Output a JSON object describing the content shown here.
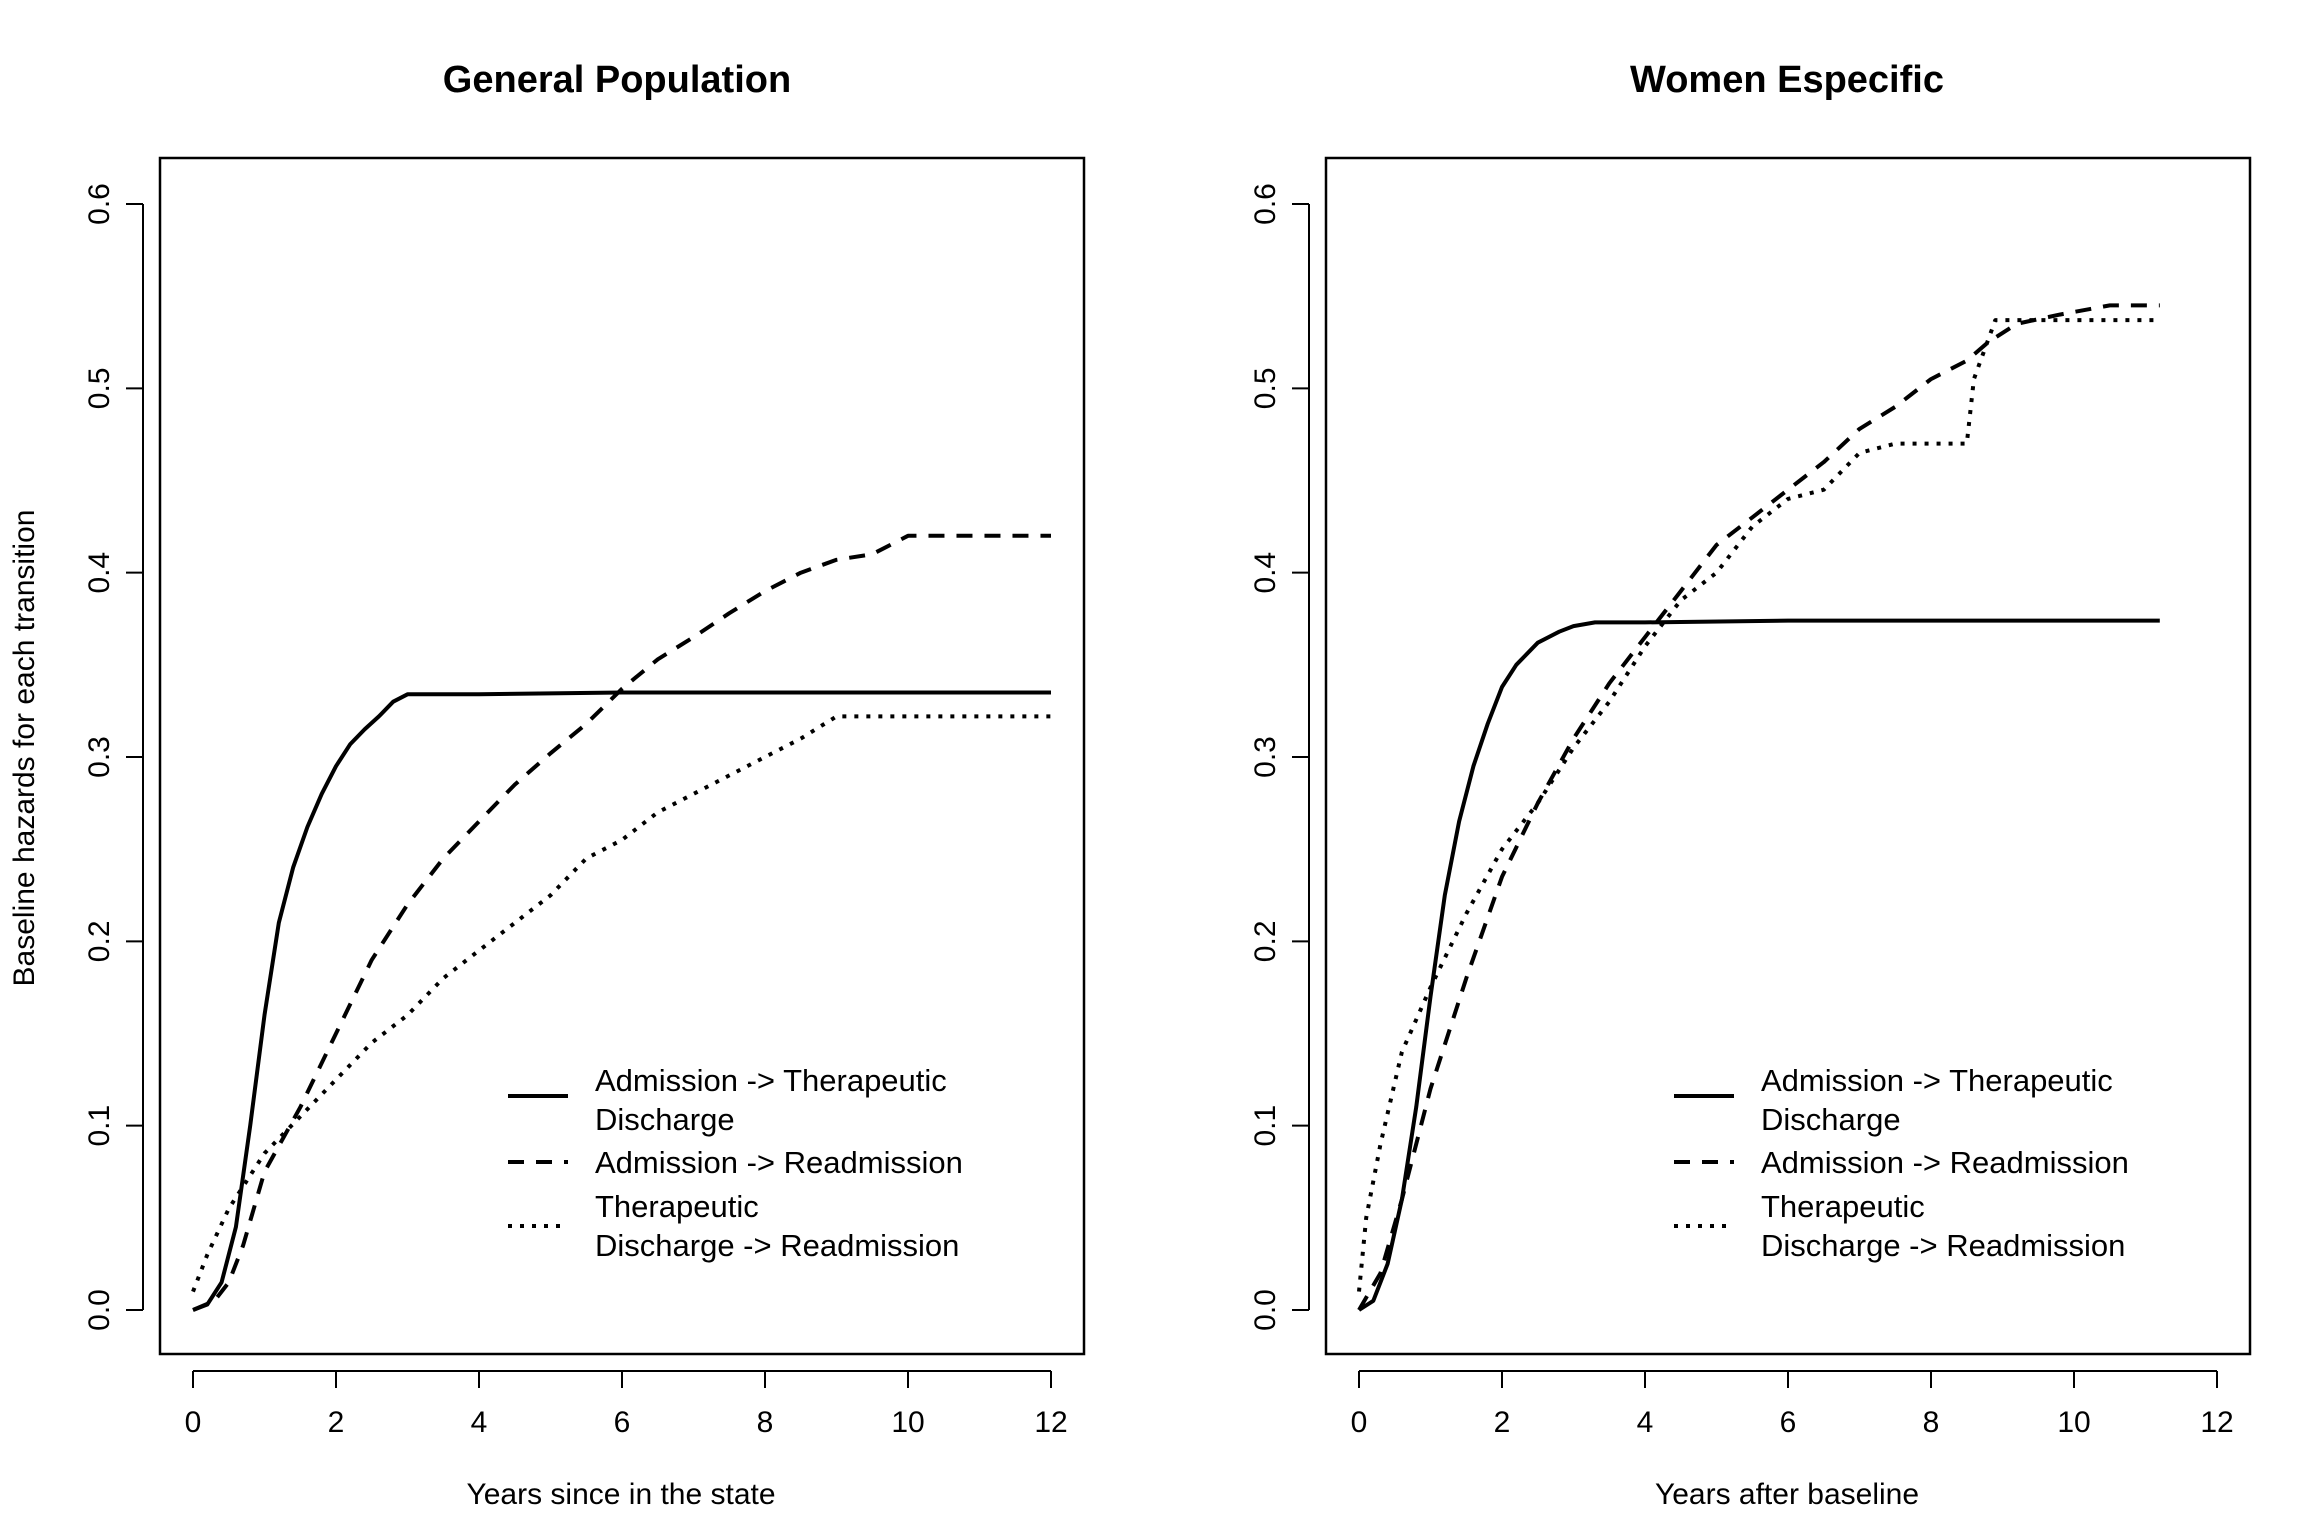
{
  "ylabel": "Baseline hazards for each transition",
  "legend_labels": [
    [
      "Admission -> Therapeutic",
      "Discharge"
    ],
    [
      "Admission -> Readmission"
    ],
    [
      "Therapeutic",
      "Discharge -> Readmission"
    ]
  ],
  "chart_data": [
    {
      "type": "line",
      "title": "General Population",
      "xlabel": "Years since in the state",
      "ylabel": "Baseline hazards for each transition",
      "xlim": [
        0,
        12
      ],
      "ylim": [
        0,
        0.6
      ],
      "xticks": [
        0,
        2,
        4,
        6,
        8,
        10,
        12
      ],
      "yticks": [
        0.0,
        0.1,
        0.2,
        0.3,
        0.4,
        0.5,
        0.6
      ],
      "ytick_labels": [
        "0.0",
        "0.1",
        "0.2",
        "0.3",
        "0.4",
        "0.5",
        "0.6"
      ],
      "grid": false,
      "legend_position": "bottom-right",
      "series": [
        {
          "name": "Admission -> Therapeutic Discharge",
          "line_style": "solid",
          "x": [
            0,
            0.2,
            0.4,
            0.6,
            0.8,
            1.0,
            1.2,
            1.4,
            1.6,
            1.8,
            2.0,
            2.2,
            2.4,
            2.6,
            2.8,
            3.0,
            4.0,
            6.0,
            8.0,
            10.0,
            12.0
          ],
          "y": [
            0,
            0.003,
            0.015,
            0.045,
            0.1,
            0.16,
            0.21,
            0.24,
            0.262,
            0.28,
            0.295,
            0.307,
            0.315,
            0.322,
            0.33,
            0.334,
            0.334,
            0.335,
            0.335,
            0.335,
            0.335
          ]
        },
        {
          "name": "Admission -> Readmission",
          "line_style": "dashed",
          "x": [
            0,
            0.3,
            0.5,
            0.7,
            1.0,
            1.5,
            2.0,
            2.5,
            3.0,
            3.5,
            4.0,
            4.5,
            5.0,
            5.5,
            6.0,
            6.5,
            7.0,
            7.5,
            8.0,
            8.5,
            9.0,
            9.5,
            10.0,
            11.0,
            12.0
          ],
          "y": [
            0,
            0.005,
            0.015,
            0.035,
            0.075,
            0.11,
            0.15,
            0.19,
            0.22,
            0.245,
            0.265,
            0.285,
            0.302,
            0.318,
            0.337,
            0.353,
            0.365,
            0.378,
            0.39,
            0.4,
            0.407,
            0.41,
            0.42,
            0.42,
            0.42
          ]
        },
        {
          "name": "Therapeutic Discharge -> Readmission",
          "line_style": "dotted",
          "x": [
            0,
            0.2,
            0.5,
            1.0,
            1.5,
            2.0,
            2.5,
            3.0,
            3.5,
            4.0,
            4.5,
            5.0,
            5.5,
            6.0,
            6.5,
            7.0,
            7.5,
            8.0,
            8.5,
            9.0,
            10.0,
            12.0
          ],
          "y": [
            0.01,
            0.03,
            0.055,
            0.085,
            0.105,
            0.125,
            0.145,
            0.16,
            0.18,
            0.195,
            0.21,
            0.225,
            0.245,
            0.255,
            0.27,
            0.28,
            0.29,
            0.3,
            0.31,
            0.322,
            0.322,
            0.322
          ]
        }
      ]
    },
    {
      "type": "line",
      "title": "Women Especific",
      "xlabel": "Years after baseline",
      "ylabel": "",
      "xlim": [
        0,
        12
      ],
      "ylim": [
        0,
        0.6
      ],
      "xticks": [
        0,
        2,
        4,
        6,
        8,
        10,
        12
      ],
      "yticks": [
        0.0,
        0.1,
        0.2,
        0.3,
        0.4,
        0.5,
        0.6
      ],
      "ytick_labels": [
        "0.0",
        "0.1",
        "0.2",
        "0.3",
        "0.4",
        "0.5",
        "0.6"
      ],
      "grid": false,
      "legend_position": "bottom-right",
      "series": [
        {
          "name": "Admission -> Therapeutic Discharge",
          "line_style": "solid",
          "x": [
            0,
            0.2,
            0.4,
            0.6,
            0.8,
            1.0,
            1.2,
            1.4,
            1.6,
            1.8,
            2.0,
            2.2,
            2.5,
            2.8,
            3.0,
            3.3,
            4.0,
            6.0,
            8.0,
            10.0,
            11.2
          ],
          "y": [
            0,
            0.005,
            0.025,
            0.06,
            0.11,
            0.17,
            0.225,
            0.265,
            0.295,
            0.318,
            0.338,
            0.35,
            0.362,
            0.368,
            0.371,
            0.373,
            0.373,
            0.374,
            0.374,
            0.374,
            0.374
          ]
        },
        {
          "name": "Admission -> Readmission",
          "line_style": "dashed",
          "x": [
            0,
            0.3,
            0.6,
            1.0,
            1.5,
            2.0,
            2.5,
            3.0,
            3.5,
            4.0,
            4.5,
            5.0,
            5.5,
            6.0,
            6.5,
            7.0,
            7.5,
            8.0,
            8.5,
            8.8,
            9.2,
            9.8,
            10.5,
            11.2
          ],
          "y": [
            0,
            0.02,
            0.06,
            0.12,
            0.18,
            0.235,
            0.275,
            0.31,
            0.34,
            0.365,
            0.39,
            0.415,
            0.43,
            0.445,
            0.46,
            0.478,
            0.49,
            0.505,
            0.515,
            0.525,
            0.535,
            0.54,
            0.545,
            0.545
          ]
        },
        {
          "name": "Therapeutic Discharge -> Readmission",
          "line_style": "dotted",
          "x": [
            0,
            0.1,
            0.3,
            0.6,
            1.0,
            1.5,
            2.0,
            2.5,
            3.0,
            3.5,
            4.0,
            4.5,
            5.0,
            5.5,
            6.0,
            6.5,
            7.0,
            7.5,
            8.0,
            8.5,
            8.6,
            8.9,
            9.5,
            10.5,
            11.2
          ],
          "y": [
            0.01,
            0.05,
            0.09,
            0.14,
            0.175,
            0.215,
            0.25,
            0.275,
            0.305,
            0.33,
            0.36,
            0.385,
            0.4,
            0.425,
            0.44,
            0.445,
            0.465,
            0.47,
            0.47,
            0.47,
            0.505,
            0.537,
            0.537,
            0.537,
            0.537
          ]
        }
      ]
    }
  ]
}
